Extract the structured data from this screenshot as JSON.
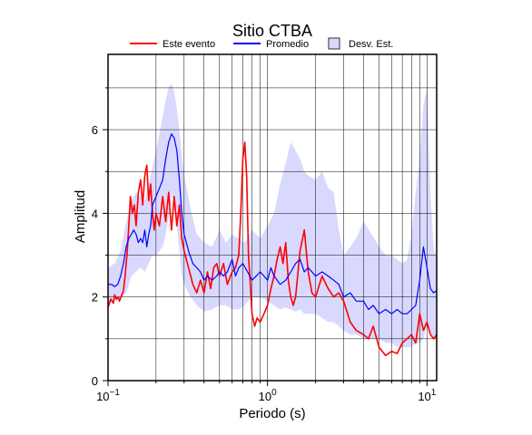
{
  "chart_data": {
    "type": "line",
    "title": "Sitio CTBA",
    "xlabel": "Periodo (s)",
    "ylabel": "Amplitud",
    "x_scale": "log",
    "xlim": [
      0.1,
      11.5
    ],
    "ylim": [
      0,
      7.8
    ],
    "x_ticks": [
      {
        "value": 0.1,
        "base": "10",
        "exp": "−1"
      },
      {
        "value": 1,
        "base": "10",
        "exp": "0"
      },
      {
        "value": 10,
        "base": "10",
        "exp": "1"
      }
    ],
    "y_ticks": [
      0,
      2,
      4,
      6
    ],
    "grid": true,
    "legend_position": "top",
    "legend": [
      {
        "label": "Este evento",
        "kind": "line",
        "color": "#ff0000"
      },
      {
        "label": "Promedio",
        "kind": "line",
        "color": "#0000ff"
      },
      {
        "label": "Desv. Est.",
        "kind": "patch",
        "color": "#d9d9ff"
      }
    ],
    "series": [
      {
        "name": "Este evento",
        "color": "#ff0000",
        "x": [
          0.1,
          0.104,
          0.108,
          0.11,
          0.113,
          0.116,
          0.118,
          0.122,
          0.125,
          0.128,
          0.132,
          0.135,
          0.138,
          0.142,
          0.146,
          0.15,
          0.155,
          0.16,
          0.165,
          0.17,
          0.175,
          0.18,
          0.185,
          0.19,
          0.195,
          0.2,
          0.21,
          0.22,
          0.23,
          0.24,
          0.25,
          0.26,
          0.27,
          0.28,
          0.29,
          0.3,
          0.32,
          0.34,
          0.36,
          0.38,
          0.4,
          0.42,
          0.44,
          0.46,
          0.48,
          0.5,
          0.53,
          0.56,
          0.6,
          0.63,
          0.66,
          0.68,
          0.7,
          0.72,
          0.74,
          0.76,
          0.78,
          0.8,
          0.83,
          0.86,
          0.9,
          0.95,
          1.0,
          1.05,
          1.1,
          1.15,
          1.2,
          1.25,
          1.3,
          1.35,
          1.4,
          1.45,
          1.5,
          1.6,
          1.7,
          1.8,
          1.9,
          2.0,
          2.2,
          2.4,
          2.6,
          2.8,
          3.0,
          3.3,
          3.6,
          4.0,
          4.3,
          4.6,
          5.0,
          5.5,
          6.0,
          6.5,
          7.0,
          7.5,
          8.0,
          8.5,
          9.0,
          9.5,
          10.0,
          10.5,
          11.0,
          11.5
        ],
        "values": [
          1.75,
          1.95,
          1.85,
          2.05,
          1.95,
          2.0,
          1.9,
          2.05,
          2.15,
          2.5,
          3.1,
          3.7,
          4.4,
          4.0,
          4.2,
          3.7,
          4.5,
          4.8,
          4.2,
          4.9,
          5.15,
          4.3,
          4.7,
          4.0,
          3.6,
          4.0,
          3.7,
          4.4,
          3.8,
          4.5,
          3.6,
          4.4,
          3.7,
          4.2,
          3.4,
          3.1,
          2.7,
          2.3,
          2.1,
          2.4,
          2.1,
          2.6,
          2.2,
          2.7,
          2.8,
          2.5,
          2.8,
          2.3,
          2.6,
          2.7,
          3.0,
          4.0,
          5.3,
          5.7,
          4.9,
          3.0,
          2.3,
          1.6,
          1.3,
          1.5,
          1.4,
          1.6,
          1.8,
          2.2,
          2.5,
          2.9,
          3.2,
          2.8,
          3.3,
          2.4,
          2.0,
          1.8,
          2.0,
          3.1,
          3.6,
          2.6,
          2.1,
          2.0,
          2.5,
          2.2,
          2.0,
          2.1,
          1.9,
          1.4,
          1.2,
          1.1,
          1.0,
          1.3,
          0.8,
          0.6,
          0.7,
          0.65,
          0.9,
          1.0,
          1.1,
          0.9,
          1.6,
          1.2,
          1.4,
          1.1,
          1.0,
          1.1
        ]
      },
      {
        "name": "Promedio",
        "color": "#0000ff",
        "x": [
          0.1,
          0.105,
          0.11,
          0.115,
          0.12,
          0.125,
          0.13,
          0.135,
          0.14,
          0.145,
          0.15,
          0.155,
          0.16,
          0.165,
          0.17,
          0.175,
          0.18,
          0.185,
          0.19,
          0.2,
          0.21,
          0.22,
          0.23,
          0.24,
          0.25,
          0.26,
          0.27,
          0.28,
          0.29,
          0.3,
          0.32,
          0.34,
          0.36,
          0.38,
          0.4,
          0.42,
          0.45,
          0.48,
          0.5,
          0.53,
          0.56,
          0.6,
          0.63,
          0.66,
          0.7,
          0.75,
          0.8,
          0.85,
          0.9,
          0.95,
          1.0,
          1.05,
          1.1,
          1.15,
          1.2,
          1.3,
          1.4,
          1.5,
          1.6,
          1.7,
          1.8,
          1.9,
          2.0,
          2.2,
          2.4,
          2.6,
          2.8,
          3.0,
          3.3,
          3.6,
          4.0,
          4.3,
          4.6,
          5.0,
          5.5,
          6.0,
          6.5,
          7.0,
          7.5,
          8.0,
          8.5,
          9.0,
          9.5,
          10.0,
          10.5,
          11.0,
          11.5
        ],
        "values": [
          2.3,
          2.3,
          2.25,
          2.3,
          2.5,
          2.8,
          3.2,
          3.4,
          3.5,
          3.6,
          3.5,
          3.3,
          3.4,
          3.3,
          3.6,
          3.2,
          3.5,
          3.7,
          4.2,
          4.4,
          4.6,
          4.8,
          5.3,
          5.7,
          5.9,
          5.8,
          5.5,
          4.8,
          4.0,
          3.5,
          3.1,
          2.8,
          2.7,
          2.6,
          2.4,
          2.5,
          2.4,
          2.5,
          2.6,
          2.5,
          2.6,
          2.9,
          2.5,
          2.7,
          2.8,
          2.6,
          2.4,
          2.5,
          2.6,
          2.5,
          2.4,
          2.7,
          2.5,
          2.4,
          2.3,
          2.4,
          2.6,
          2.8,
          2.9,
          2.6,
          2.7,
          2.6,
          2.5,
          2.6,
          2.5,
          2.4,
          2.3,
          2.0,
          2.1,
          1.9,
          1.9,
          1.7,
          1.8,
          1.6,
          1.7,
          1.6,
          1.7,
          1.6,
          1.6,
          1.7,
          1.8,
          2.4,
          3.2,
          2.7,
          2.2,
          2.1,
          2.15
        ]
      }
    ],
    "band": {
      "name": "Desv. Est.",
      "color": "#d9d9ff",
      "x": [
        0.1,
        0.11,
        0.12,
        0.13,
        0.14,
        0.15,
        0.16,
        0.17,
        0.18,
        0.19,
        0.2,
        0.21,
        0.22,
        0.23,
        0.24,
        0.25,
        0.26,
        0.27,
        0.28,
        0.29,
        0.3,
        0.33,
        0.36,
        0.4,
        0.45,
        0.5,
        0.55,
        0.6,
        0.66,
        0.72,
        0.8,
        0.9,
        1.0,
        1.1,
        1.2,
        1.3,
        1.4,
        1.5,
        1.6,
        1.7,
        1.8,
        2.0,
        2.2,
        2.4,
        2.6,
        2.8,
        3.0,
        3.3,
        3.6,
        4.0,
        4.5,
        5.0,
        5.5,
        6.0,
        6.5,
        7.0,
        7.5,
        8.0,
        8.5,
        9.0,
        9.5,
        10.0,
        10.5,
        11.0,
        11.5
      ],
      "upper": [
        2.7,
        2.8,
        3.1,
        3.8,
        4.3,
        4.5,
        4.4,
        4.3,
        4.7,
        5.1,
        5.5,
        5.9,
        6.3,
        6.7,
        7.0,
        7.1,
        6.9,
        6.5,
        6.0,
        5.4,
        4.9,
        4.1,
        3.5,
        3.3,
        3.2,
        3.6,
        3.3,
        3.5,
        3.4,
        3.3,
        3.6,
        3.4,
        3.7,
        4.0,
        4.7,
        5.2,
        5.7,
        5.5,
        5.3,
        5.0,
        4.9,
        4.8,
        5.0,
        4.6,
        4.5,
        3.6,
        3.0,
        3.2,
        3.4,
        3.8,
        3.5,
        3.2,
        3.0,
        3.0,
        2.9,
        2.8,
        2.9,
        3.5,
        4.5,
        5.3,
        6.6,
        7.0,
        4.5,
        3.2,
        2.9
      ],
      "lower": [
        1.85,
        1.9,
        1.95,
        2.1,
        2.5,
        2.6,
        2.7,
        2.6,
        2.8,
        3.0,
        3.0,
        3.1,
        3.2,
        3.5,
        3.9,
        4.4,
        4.3,
        3.7,
        3.1,
        2.5,
        2.3,
        2.0,
        1.8,
        1.65,
        1.7,
        1.8,
        1.8,
        1.7,
        1.7,
        1.8,
        2.0,
        2.0,
        1.9,
        1.8,
        1.7,
        1.75,
        1.7,
        1.65,
        1.7,
        1.6,
        1.6,
        1.6,
        1.5,
        1.4,
        1.4,
        1.3,
        1.2,
        1.1,
        1.1,
        1.0,
        1.0,
        1.0,
        0.9,
        0.9,
        0.8,
        0.8,
        0.8,
        0.8,
        0.9,
        0.9,
        1.0,
        1.3,
        1.1,
        1.0,
        1.0
      ]
    }
  }
}
